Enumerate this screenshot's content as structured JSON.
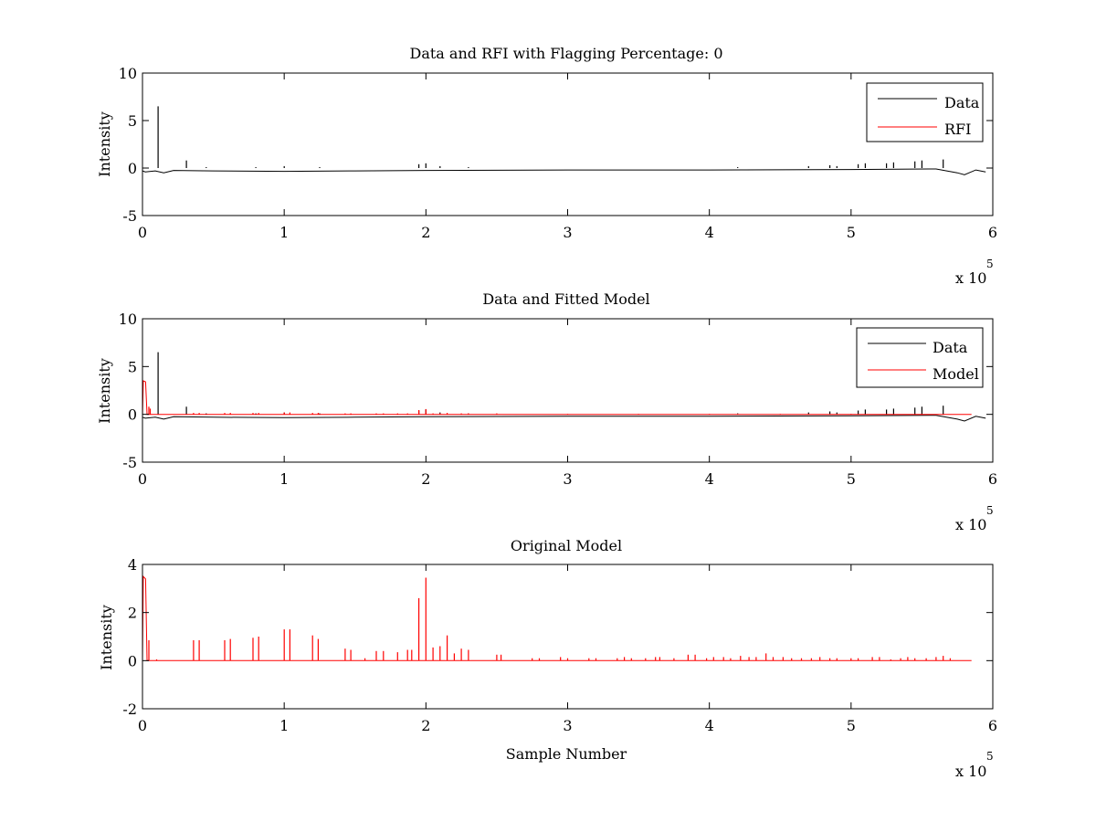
{
  "figure": {
    "background": "#ffffff",
    "axis_color": "#000000"
  },
  "chart_data": [
    {
      "type": "line",
      "title": "Data and RFI with Flagging Percentage: 0",
      "xlabel": "",
      "ylabel": "Intensity",
      "xlim": [
        0,
        600000
      ],
      "ylim": [
        -5,
        10
      ],
      "xticks": [
        0,
        1,
        2,
        3,
        4,
        5,
        6
      ],
      "yticks": [
        -5,
        0,
        5,
        10
      ],
      "x_exponent_base": "x 10",
      "x_exponent_power": "5",
      "legend": {
        "position": "top-right",
        "entries": [
          "Data",
          "RFI"
        ]
      },
      "series": [
        {
          "name": "Data",
          "color": "#000000",
          "baseline": [
            [
              0,
              -0.3
            ],
            [
              2000,
              -0.4
            ],
            [
              9000,
              -0.3
            ],
            [
              15000,
              -0.5
            ],
            [
              22000,
              -0.25
            ],
            [
              50000,
              -0.3
            ],
            [
              100000,
              -0.35
            ],
            [
              150000,
              -0.3
            ],
            [
              200000,
              -0.25
            ],
            [
              300000,
              -0.2
            ],
            [
              400000,
              -0.2
            ],
            [
              500000,
              -0.15
            ],
            [
              560000,
              -0.1
            ],
            [
              575000,
              -0.5
            ],
            [
              580000,
              -0.7
            ],
            [
              588000,
              -0.2
            ],
            [
              595000,
              -0.4
            ]
          ],
          "spikes": [
            [
              11000,
              6.5
            ],
            [
              31000,
              0.8
            ],
            [
              45000,
              0.1
            ],
            [
              80000,
              0.1
            ],
            [
              100000,
              0.2
            ],
            [
              125000,
              0.1
            ],
            [
              195000,
              0.4
            ],
            [
              200000,
              0.5
            ],
            [
              210000,
              0.2
            ],
            [
              230000,
              0.1
            ],
            [
              420000,
              0.1
            ],
            [
              470000,
              0.2
            ],
            [
              485000,
              0.3
            ],
            [
              490000,
              0.2
            ],
            [
              505000,
              0.4
            ],
            [
              510000,
              0.5
            ],
            [
              525000,
              0.5
            ],
            [
              530000,
              0.6
            ],
            [
              545000,
              0.7
            ],
            [
              550000,
              0.8
            ],
            [
              565000,
              0.9
            ]
          ]
        },
        {
          "name": "RFI",
          "color": "#ff0000",
          "baseline": [],
          "spikes": []
        }
      ]
    },
    {
      "type": "line",
      "title": "Data and Fitted Model",
      "xlabel": "",
      "ylabel": "Intensity",
      "xlim": [
        0,
        600000
      ],
      "ylim": [
        -5,
        10
      ],
      "xticks": [
        0,
        1,
        2,
        3,
        4,
        5,
        6
      ],
      "yticks": [
        -5,
        0,
        5,
        10
      ],
      "x_exponent_base": "x 10",
      "x_exponent_power": "5",
      "legend": {
        "position": "top-right",
        "entries": [
          "Data",
          "Model"
        ]
      },
      "series": [
        {
          "name": "Data",
          "color": "#000000",
          "baseline": [
            [
              0,
              -0.3
            ],
            [
              2000,
              -0.4
            ],
            [
              9000,
              -0.3
            ],
            [
              15000,
              -0.5
            ],
            [
              22000,
              -0.25
            ],
            [
              50000,
              -0.3
            ],
            [
              100000,
              -0.35
            ],
            [
              150000,
              -0.3
            ],
            [
              200000,
              -0.25
            ],
            [
              300000,
              -0.2
            ],
            [
              400000,
              -0.2
            ],
            [
              500000,
              -0.15
            ],
            [
              560000,
              -0.1
            ],
            [
              575000,
              -0.5
            ],
            [
              580000,
              -0.7
            ],
            [
              588000,
              -0.2
            ],
            [
              595000,
              -0.4
            ]
          ],
          "spikes": [
            [
              11000,
              6.5
            ],
            [
              31000,
              0.8
            ],
            [
              45000,
              0.1
            ],
            [
              80000,
              0.1
            ],
            [
              100000,
              0.2
            ],
            [
              125000,
              0.1
            ],
            [
              195000,
              0.4
            ],
            [
              200000,
              0.5
            ],
            [
              210000,
              0.2
            ],
            [
              230000,
              0.1
            ],
            [
              420000,
              0.1
            ],
            [
              470000,
              0.2
            ],
            [
              485000,
              0.3
            ],
            [
              490000,
              0.2
            ],
            [
              505000,
              0.4
            ],
            [
              510000,
              0.5
            ],
            [
              525000,
              0.5
            ],
            [
              530000,
              0.6
            ],
            [
              545000,
              0.7
            ],
            [
              550000,
              0.8
            ],
            [
              565000,
              0.9
            ]
          ]
        },
        {
          "name": "Model",
          "color": "#ff0000",
          "baseline": [
            [
              0,
              -0.2
            ],
            [
              600,
              3.5
            ],
            [
              2200,
              3.4
            ],
            [
              3200,
              0.0
            ],
            [
              585000,
              0.0
            ]
          ],
          "spikes": [
            [
              4500,
              0.8
            ],
            [
              5500,
              0.6
            ],
            [
              36000,
              0.15
            ],
            [
              40000,
              0.15
            ],
            [
              58000,
              0.15
            ],
            [
              62000,
              0.15
            ],
            [
              78000,
              0.15
            ],
            [
              82000,
              0.15
            ],
            [
              100000,
              0.2
            ],
            [
              104000,
              0.2
            ],
            [
              120000,
              0.15
            ],
            [
              124000,
              0.15
            ],
            [
              143000,
              0.1
            ],
            [
              147000,
              0.1
            ],
            [
              165000,
              0.1
            ],
            [
              170000,
              0.1
            ],
            [
              180000,
              0.1
            ],
            [
              187000,
              0.1
            ],
            [
              195000,
              0.45
            ],
            [
              200000,
              0.55
            ],
            [
              205000,
              0.1
            ],
            [
              210000,
              0.1
            ],
            [
              215000,
              0.15
            ],
            [
              225000,
              0.1
            ],
            [
              230000,
              0.1
            ],
            [
              250000,
              0.1
            ],
            [
              300000,
              0.05
            ],
            [
              350000,
              0.05
            ],
            [
              400000,
              0.05
            ],
            [
              450000,
              0.05
            ],
            [
              500000,
              0.05
            ],
            [
              550000,
              0.05
            ]
          ]
        }
      ]
    },
    {
      "type": "line",
      "title": "Original Model",
      "xlabel": "Sample Number",
      "ylabel": "Intensity",
      "xlim": [
        0,
        600000
      ],
      "ylim": [
        -2,
        4
      ],
      "xticks": [
        0,
        1,
        2,
        3,
        4,
        5,
        6
      ],
      "yticks": [
        -2,
        0,
        2,
        4
      ],
      "x_exponent_base": "x 10",
      "x_exponent_power": "5",
      "legend": null,
      "series": [
        {
          "name": "Original Model",
          "color": "#ff0000",
          "baseline": [
            [
              0,
              0.0
            ],
            [
              600,
              3.5
            ],
            [
              2200,
              3.4
            ],
            [
              3200,
              0.0
            ],
            [
              585000,
              0.0
            ]
          ],
          "spikes": [
            [
              4500,
              0.85
            ],
            [
              10000,
              0.05
            ],
            [
              36000,
              0.85
            ],
            [
              40000,
              0.85
            ],
            [
              58000,
              0.85
            ],
            [
              62000,
              0.9
            ],
            [
              78000,
              0.95
            ],
            [
              82000,
              1.0
            ],
            [
              100000,
              1.3
            ],
            [
              104000,
              1.3
            ],
            [
              120000,
              1.05
            ],
            [
              124000,
              0.9
            ],
            [
              143000,
              0.5
            ],
            [
              147000,
              0.45
            ],
            [
              157000,
              0.1
            ],
            [
              165000,
              0.4
            ],
            [
              170000,
              0.4
            ],
            [
              180000,
              0.35
            ],
            [
              187000,
              0.45
            ],
            [
              190000,
              0.45
            ],
            [
              195000,
              2.6
            ],
            [
              200000,
              3.45
            ],
            [
              205000,
              0.55
            ],
            [
              210000,
              0.6
            ],
            [
              215000,
              1.05
            ],
            [
              220000,
              0.3
            ],
            [
              225000,
              0.5
            ],
            [
              230000,
              0.45
            ],
            [
              250000,
              0.25
            ],
            [
              253000,
              0.25
            ],
            [
              275000,
              0.1
            ],
            [
              280000,
              0.1
            ],
            [
              295000,
              0.15
            ],
            [
              300000,
              0.1
            ],
            [
              315000,
              0.1
            ],
            [
              320000,
              0.1
            ],
            [
              335000,
              0.1
            ],
            [
              340000,
              0.15
            ],
            [
              345000,
              0.1
            ],
            [
              355000,
              0.1
            ],
            [
              362000,
              0.15
            ],
            [
              365000,
              0.15
            ],
            [
              375000,
              0.1
            ],
            [
              385000,
              0.25
            ],
            [
              390000,
              0.25
            ],
            [
              398000,
              0.1
            ],
            [
              403000,
              0.15
            ],
            [
              410000,
              0.15
            ],
            [
              415000,
              0.1
            ],
            [
              422000,
              0.2
            ],
            [
              428000,
              0.15
            ],
            [
              433000,
              0.15
            ],
            [
              440000,
              0.3
            ],
            [
              445000,
              0.15
            ],
            [
              452000,
              0.15
            ],
            [
              458000,
              0.1
            ],
            [
              465000,
              0.1
            ],
            [
              472000,
              0.1
            ],
            [
              478000,
              0.15
            ],
            [
              485000,
              0.1
            ],
            [
              490000,
              0.1
            ],
            [
              500000,
              0.1
            ],
            [
              505000,
              0.1
            ],
            [
              515000,
              0.15
            ],
            [
              520000,
              0.15
            ],
            [
              528000,
              0.05
            ],
            [
              535000,
              0.1
            ],
            [
              540000,
              0.15
            ],
            [
              545000,
              0.1
            ],
            [
              553000,
              0.1
            ],
            [
              560000,
              0.15
            ],
            [
              565000,
              0.2
            ],
            [
              570000,
              0.1
            ]
          ]
        }
      ]
    }
  ]
}
